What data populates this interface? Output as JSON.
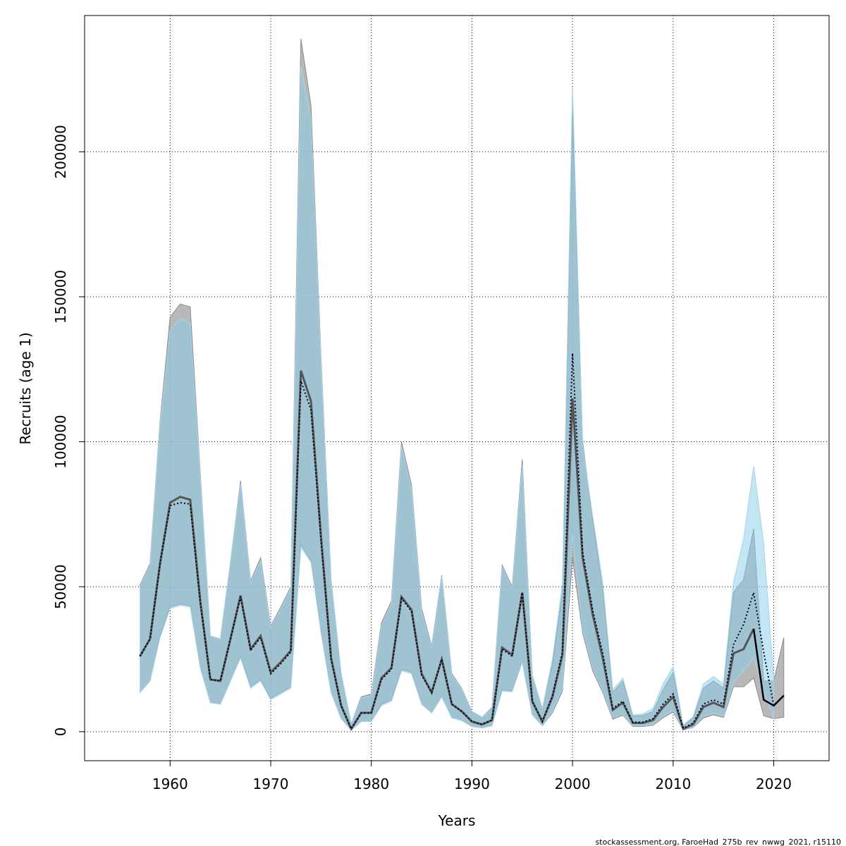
{
  "chart_data": {
    "type": "line",
    "title": "",
    "xlabel": "Years",
    "ylabel": "Recruits (age 1)",
    "xlim": [
      1951.5,
      2025.5
    ],
    "ylim": [
      -10000,
      247000
    ],
    "x_ticks": [
      1960,
      1970,
      1980,
      1990,
      2000,
      2010,
      2020
    ],
    "y_ticks": [
      0,
      50000,
      100000,
      150000,
      200000
    ],
    "grid": true,
    "legend": "none",
    "colors": {
      "band_grey": "#a0a0a0",
      "band_blue": "#87ceeb",
      "line_grey": "#555555",
      "line_dotted": "#00001a",
      "line_tail": "#000000"
    },
    "series": [
      {
        "x": [
          1957,
          1958,
          1959,
          1960,
          1961,
          1962,
          1963,
          1964,
          1965,
          1966,
          1967,
          1968,
          1969,
          1970,
          1971,
          1972,
          1973,
          1974,
          1975,
          1976,
          1977,
          1978,
          1979,
          1980,
          1981,
          1982,
          1983,
          1984,
          1985,
          1986,
          1987,
          1988,
          1989,
          1990,
          1991,
          1992,
          1993,
          1994,
          1995,
          1996,
          1997,
          1998,
          1999,
          2000,
          2001,
          2002,
          2003,
          2004,
          2005,
          2006,
          2007,
          2008,
          2009,
          2010,
          2011,
          2012,
          2013,
          2014,
          2015,
          2016,
          2017,
          2018,
          2019,
          2020,
          2021
        ],
        "values": [
          26000,
          32000,
          58000,
          79000,
          81000,
          80000,
          45000,
          18000,
          17500,
          32000,
          47000,
          28500,
          33000,
          20500,
          24000,
          28000,
          124500,
          114000,
          67000,
          25500,
          9000,
          1000,
          6500,
          6500,
          18500,
          22000,
          46500,
          42000,
          20000,
          13500,
          25000,
          9500,
          7000,
          3500,
          2500,
          4000,
          29000,
          26500,
          48000,
          10500,
          3500,
          12000,
          26500,
          115000,
          60000,
          40500,
          25500,
          7500,
          10000,
          3000,
          3000,
          4000,
          8500,
          12000,
          1000,
          2500,
          8500,
          10000,
          8500,
          27000,
          28500,
          35500,
          11000,
          9000,
          12500
        ],
        "lower": [
          13500,
          17500,
          33000,
          43000,
          44000,
          43500,
          22000,
          10000,
          9500,
          17500,
          26000,
          15500,
          18000,
          11500,
          13500,
          15500,
          64500,
          59000,
          34500,
          13500,
          4500,
          500,
          3500,
          3500,
          9500,
          11000,
          21500,
          20500,
          9500,
          6500,
          12000,
          4800,
          3800,
          1800,
          1300,
          2000,
          14500,
          14000,
          24000,
          5800,
          2000,
          6500,
          14000,
          60000,
          34000,
          21000,
          13500,
          4300,
          5700,
          1800,
          1800,
          2200,
          4800,
          6800,
          600,
          1500,
          4700,
          5800,
          4900,
          15500,
          15500,
          18500,
          5500,
          4500,
          5000
        ],
        "upper": [
          50500,
          58000,
          107000,
          143000,
          147500,
          146500,
          89000,
          33000,
          32000,
          58500,
          86500,
          52000,
          60000,
          36500,
          43000,
          50000,
          239000,
          216000,
          128500,
          52500,
          20000,
          2800,
          12000,
          13000,
          37500,
          45000,
          100000,
          85000,
          42500,
          29500,
          54000,
          20000,
          15000,
          7000,
          5000,
          8500,
          57500,
          50000,
          94000,
          19500,
          8000,
          23500,
          48000,
          215000,
          100000,
          73000,
          49000,
          13500,
          17500,
          5400,
          5600,
          7000,
          14500,
          20500,
          2100,
          4700,
          15000,
          17500,
          15000,
          48000,
          52500,
          70000,
          17500,
          17500,
          32500
        ]
      },
      {
        "x": [
          1957,
          1958,
          1959,
          1960,
          1961,
          1962,
          1963,
          1964,
          1965,
          1966,
          1967,
          1968,
          1969,
          1970,
          1971,
          1972,
          1973,
          1974,
          1975,
          1976,
          1977,
          1978,
          1979,
          1980,
          1981,
          1982,
          1983,
          1984,
          1985,
          1986,
          1987,
          1988,
          1989,
          1990,
          1991,
          1992,
          1993,
          1994,
          1995,
          1996,
          1997,
          1998,
          1999,
          2000,
          2001,
          2002,
          2003,
          2004,
          2005,
          2006,
          2007,
          2008,
          2009,
          2010,
          2011,
          2012,
          2013,
          2014,
          2015,
          2016,
          2017,
          2018,
          2019,
          2020
        ],
        "values": [
          26000,
          32000,
          58000,
          78000,
          79000,
          78500,
          44500,
          18000,
          17500,
          32000,
          46500,
          28000,
          32500,
          20000,
          23500,
          27500,
          121000,
          111000,
          66000,
          25000,
          9000,
          1000,
          6500,
          6500,
          18000,
          21500,
          46000,
          41500,
          19500,
          13500,
          25000,
          9500,
          7000,
          3500,
          2500,
          4000,
          28500,
          26000,
          48000,
          10500,
          3500,
          12500,
          27500,
          130500,
          62000,
          42000,
          27000,
          8000,
          10500,
          3200,
          3300,
          4500,
          9500,
          13000,
          1200,
          3000,
          9500,
          11000,
          9500,
          30000,
          37000,
          48000,
          27500,
          9000
        ],
        "lower": [
          13500,
          17500,
          32500,
          42500,
          43500,
          43000,
          22000,
          10000,
          9500,
          17500,
          25500,
          15000,
          17500,
          11000,
          13000,
          15000,
          63500,
          58500,
          34000,
          13500,
          4500,
          500,
          3500,
          3500,
          9000,
          10500,
          21000,
          20000,
          9500,
          6500,
          12000,
          4800,
          3800,
          1800,
          1300,
          2000,
          14000,
          13800,
          24000,
          5800,
          2000,
          7000,
          15000,
          68000,
          35000,
          22000,
          14000,
          4800,
          6000,
          2000,
          2000,
          2500,
          5400,
          7400,
          700,
          1700,
          5400,
          6400,
          5400,
          17000,
          21000,
          25500,
          14000,
          4500
        ],
        "upper": [
          50000,
          57500,
          106000,
          138500,
          142500,
          141000,
          88000,
          33000,
          32000,
          58500,
          85500,
          51500,
          59000,
          36000,
          42500,
          49500,
          229500,
          210500,
          127000,
          52000,
          20000,
          2800,
          11500,
          12500,
          36500,
          44000,
          98500,
          84000,
          41500,
          29000,
          53500,
          19500,
          15000,
          7000,
          5000,
          8500,
          57000,
          49500,
          92000,
          19500,
          8000,
          25000,
          51000,
          222500,
          98500,
          74500,
          51500,
          14500,
          18500,
          5800,
          6200,
          8100,
          16500,
          22500,
          2200,
          5300,
          16500,
          19000,
          16500,
          51500,
          66500,
          91500,
          65000,
          18500
        ]
      }
    ],
    "annotations": [
      "stockassessment.org, FaroeHad_275b_rev_nwwg_2021, r15110"
    ]
  }
}
